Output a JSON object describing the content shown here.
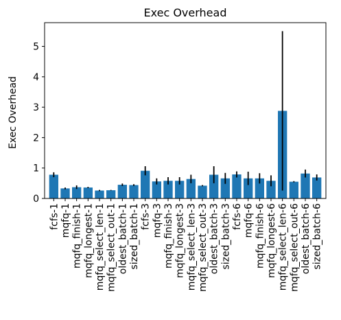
{
  "chart_data": {
    "type": "bar",
    "title": "Exec Overhead",
    "xlabel": "",
    "ylabel": "Exec Overhead",
    "ylim": [
      0,
      5.78
    ],
    "yticks": [
      0,
      1,
      2,
      3,
      4,
      5
    ],
    "grid": false,
    "legend": "none",
    "bar_color": "#1f77b4",
    "error_color": "#000000",
    "categories": [
      "fcfs-1",
      "mqfq-1",
      "mqfq_finish-1",
      "mqfq_longest-1",
      "mqfq_select_len-1",
      "mqfq_select_out-1",
      "oldest_batch-1",
      "sized_batch-1",
      "fcfs-3",
      "mqfq-3",
      "mqfq_finish-3",
      "mqfq_longest-3",
      "mqfq_select_len-3",
      "mqfq_select_out-3",
      "oldest_batch-3",
      "sized_batch-3",
      "fcfs-6",
      "mqfq-6",
      "mqfq_finish-6",
      "mqfq_longest-6",
      "mqfq_select_len-6",
      "mqfq_select_out-6",
      "oldest_batch-6",
      "sized_batch-6"
    ],
    "values": [
      0.78,
      0.33,
      0.37,
      0.36,
      0.26,
      0.27,
      0.45,
      0.44,
      0.91,
      0.56,
      0.58,
      0.58,
      0.64,
      0.42,
      0.78,
      0.66,
      0.79,
      0.66,
      0.66,
      0.58,
      2.88,
      0.55,
      0.82,
      0.69
    ],
    "errors": [
      0.08,
      0.03,
      0.06,
      0.02,
      0.02,
      0.01,
      0.04,
      0.03,
      0.15,
      0.1,
      0.12,
      0.12,
      0.14,
      0.02,
      0.28,
      0.18,
      0.1,
      0.22,
      0.17,
      0.18,
      2.62,
      0.02,
      0.13,
      0.1
    ]
  }
}
